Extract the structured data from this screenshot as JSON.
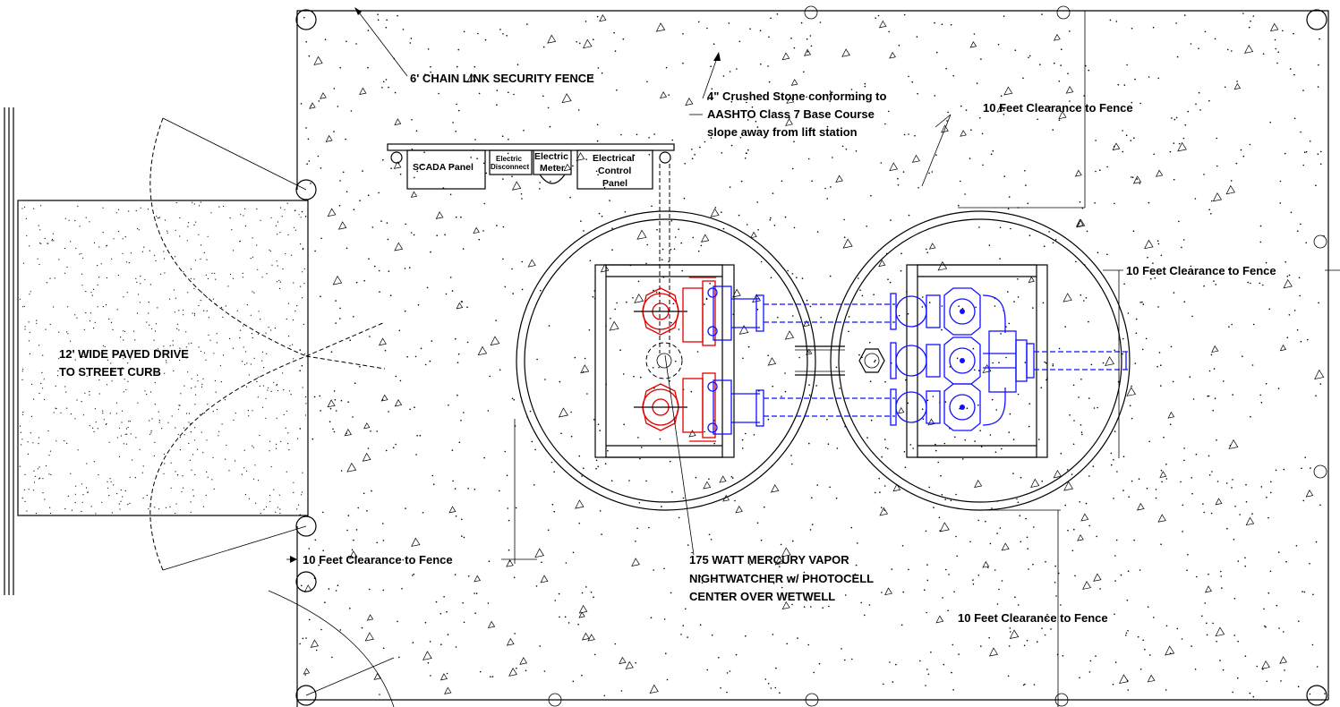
{
  "diagram": {
    "labels": {
      "fence": "6' CHAIN LINK SECURITY FENCE",
      "stone_line1": "4\" Crushed Stone conforming to",
      "stone_line2": "AASHTO Class 7 Base Course",
      "stone_line3": "slope away from lift station",
      "clearance_top_right": "10 Feet Clearance to Fence",
      "clearance_right": "10 Feet Clearance to Fence",
      "clearance_left_bottom": "10 Feet Clearance to Fence",
      "clearance_bottom_right": "10 Feet Clearance to Fence",
      "drive_line1": "12' WIDE PAVED DRIVE",
      "drive_line2": "TO STREET CURB",
      "light_line1": "175 WATT MERCURY VAPOR",
      "light_line2": "NIGHTWATCHER w/ PHOTOCELL",
      "light_line3": "CENTER OVER WETWELL"
    },
    "panels": {
      "scada": "SCADA Panel",
      "disconnect_line1": "Electric",
      "disconnect_line2": "Disconnect",
      "meter_line1": "Electric",
      "meter_line2": "Meter",
      "control_line1": "Electrical",
      "control_line2": "Control",
      "control_line3": "Panel"
    }
  },
  "colors": {
    "linework": "#000000",
    "pump_equipment": "#e00000",
    "valve_piping": "#1010ff"
  }
}
